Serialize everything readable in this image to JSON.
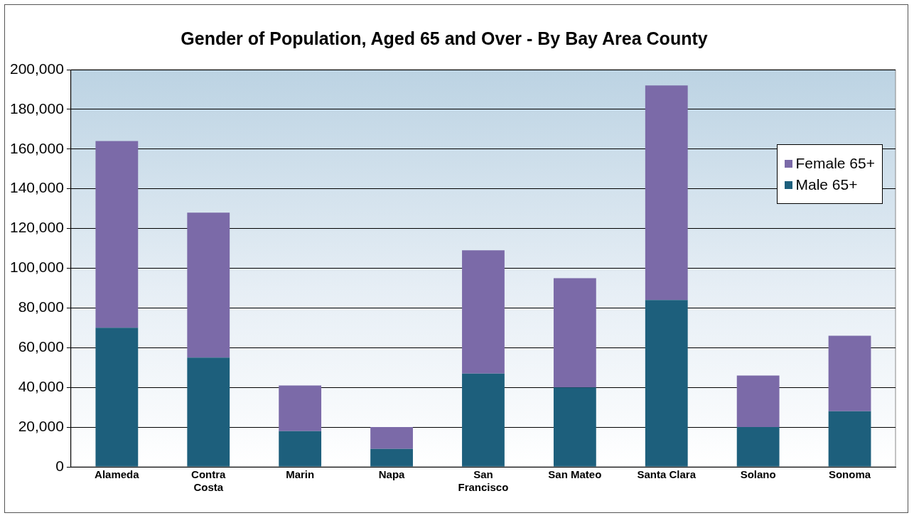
{
  "chart_data": {
    "type": "bar",
    "title": "Gender of Population, Aged 65 and Over - By Bay Area County",
    "categories": [
      "Alameda",
      "Contra Costa",
      "Marin",
      "Napa",
      "San Francisco",
      "San Mateo",
      "Santa Clara",
      "Solano",
      "Sonoma"
    ],
    "series": [
      {
        "name": "Male 65+",
        "color": "#1d5f7c",
        "values": [
          70000,
          55000,
          18000,
          9000,
          47000,
          40000,
          84000,
          20000,
          28000
        ]
      },
      {
        "name": "Female 65+",
        "color": "#7b6aa8",
        "values": [
          94000,
          73000,
          23000,
          11000,
          62000,
          55000,
          108000,
          26000,
          38000
        ]
      }
    ],
    "stacked": true,
    "ylim": [
      0,
      200000
    ],
    "yticks": [
      0,
      {
        "value": 20000,
        "label": "20,000"
      },
      {
        "value": 40000,
        "label": "40,000"
      },
      {
        "value": 60000,
        "label": "60,000"
      },
      {
        "value": 80000,
        "label": "80,000"
      },
      {
        "value": 100000,
        "label": "100,000"
      },
      {
        "value": 120000,
        "label": "120,000"
      },
      {
        "value": 140000,
        "label": "140,000"
      },
      {
        "value": 160000,
        "label": "160,000"
      },
      {
        "value": 180000,
        "label": "180,000"
      },
      {
        "value": 200000,
        "label": "200,000"
      }
    ],
    "grid": "y",
    "legend": "right"
  }
}
